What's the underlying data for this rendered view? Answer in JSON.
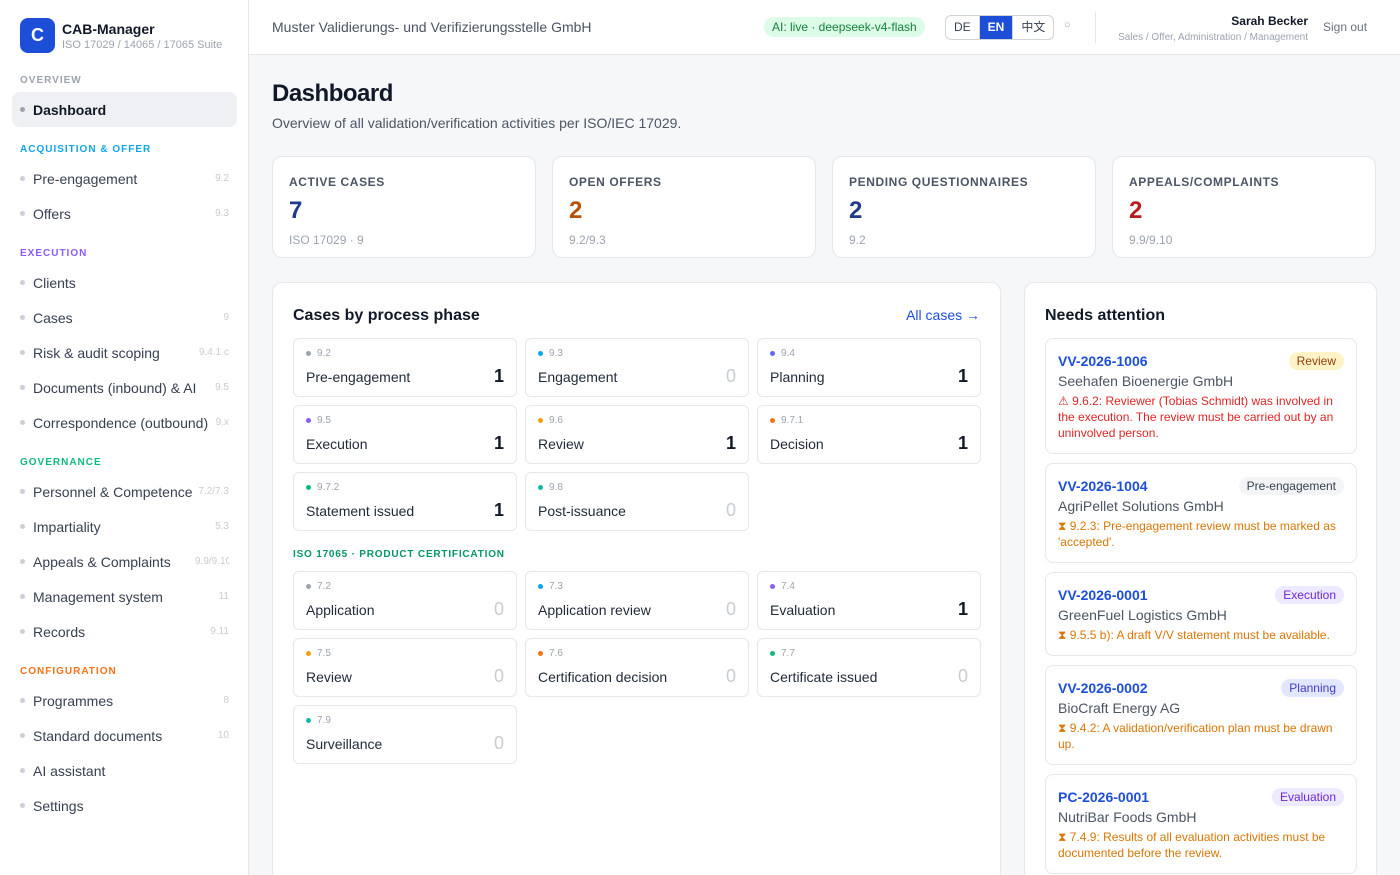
{
  "app": {
    "logo_letter": "C",
    "name": "CAB-Manager",
    "subtitle": "ISO 17029 / 14065 / 17065 Suite"
  },
  "sidebar": {
    "sections": [
      {
        "title": "OVERVIEW",
        "color": "#9ca3af",
        "items": [
          {
            "label": "Dashboard",
            "code": "",
            "active": true
          }
        ]
      },
      {
        "title": "ACQUISITION & OFFER",
        "color": "#0ea5e9",
        "items": [
          {
            "label": "Pre-engagement",
            "code": "9.2"
          },
          {
            "label": "Offers",
            "code": "9.3"
          }
        ]
      },
      {
        "title": "EXECUTION",
        "color": "#8b5cf6",
        "items": [
          {
            "label": "Clients",
            "code": ""
          },
          {
            "label": "Cases",
            "code": "9"
          },
          {
            "label": "Risk & audit scoping",
            "code": "9.4.1 c"
          },
          {
            "label": "Documents (inbound) & AI",
            "code": "9.5"
          },
          {
            "label": "Correspondence (outbound)",
            "code": "9.x"
          }
        ]
      },
      {
        "title": "GOVERNANCE",
        "color": "#10b981",
        "items": [
          {
            "label": "Personnel & Competence",
            "code": "7.2/7.3"
          },
          {
            "label": "Impartiality",
            "code": "5.3"
          },
          {
            "label": "Appeals & Complaints",
            "code": "9.9/9.10"
          },
          {
            "label": "Management system",
            "code": "11"
          },
          {
            "label": "Records",
            "code": "9.11"
          }
        ]
      },
      {
        "title": "CONFIGURATION",
        "color": "#f97316",
        "items": [
          {
            "label": "Programmes",
            "code": "8"
          },
          {
            "label": "Standard documents",
            "code": "10"
          },
          {
            "label": "AI assistant",
            "code": ""
          },
          {
            "label": "Settings",
            "code": ""
          }
        ]
      }
    ]
  },
  "topbar": {
    "org_name": "Muster Validierungs- und Verifizierungsstelle GmbH",
    "ai_status": "AI: live · deepseek-v4-flash",
    "languages": [
      {
        "label": "DE",
        "active": false
      },
      {
        "label": "EN",
        "active": true
      },
      {
        "label": "中文",
        "active": false
      }
    ],
    "theme_toggle_icon": "○",
    "user_name": "Sarah Becker",
    "user_role": "Sales / Offer, Administration / Management",
    "signout_label": "Sign out"
  },
  "page": {
    "title": "Dashboard",
    "subtitle": "Overview of all validation/verification activities per ISO/IEC 17029."
  },
  "stats": [
    {
      "label": "ACTIVE CASES",
      "value": "7",
      "sub": "ISO 17029 · 9",
      "color": "#1e3a8a"
    },
    {
      "label": "OPEN OFFERS",
      "value": "2",
      "sub": "9.2/9.3",
      "color": "#b45309"
    },
    {
      "label": "PENDING QUESTIONNAIRES",
      "value": "2",
      "sub": "9.2",
      "color": "#1e3a8a"
    },
    {
      "label": "APPEALS/COMPLAINTS",
      "value": "2",
      "sub": "9.9/9.10",
      "color": "#b91c1c"
    }
  ],
  "phases_panel": {
    "title": "Cases by process phase",
    "all_cases_label": "All cases →",
    "iso17029": [
      {
        "code": "9.2",
        "name": "Pre-engagement",
        "count": "1",
        "dot": "#9ca3af"
      },
      {
        "code": "9.3",
        "name": "Engagement",
        "count": "0",
        "dot": "#0ea5e9"
      },
      {
        "code": "9.4",
        "name": "Planning",
        "count": "1",
        "dot": "#6366f1"
      },
      {
        "code": "9.5",
        "name": "Execution",
        "count": "1",
        "dot": "#8b5cf6"
      },
      {
        "code": "9.6",
        "name": "Review",
        "count": "1",
        "dot": "#f59e0b"
      },
      {
        "code": "9.7.1",
        "name": "Decision",
        "count": "1",
        "dot": "#f97316"
      },
      {
        "code": "9.7.2",
        "name": "Statement issued",
        "count": "1",
        "dot": "#10b981"
      },
      {
        "code": "9.8",
        "name": "Post-issuance",
        "count": "0",
        "dot": "#14b8a6"
      }
    ],
    "iso17065_title": "ISO 17065 · PRODUCT CERTIFICATION",
    "iso17065": [
      {
        "code": "7.2",
        "name": "Application",
        "count": "0",
        "dot": "#9ca3af"
      },
      {
        "code": "7.3",
        "name": "Application review",
        "count": "0",
        "dot": "#0ea5e9"
      },
      {
        "code": "7.4",
        "name": "Evaluation",
        "count": "1",
        "dot": "#8b5cf6"
      },
      {
        "code": "7.5",
        "name": "Review",
        "count": "0",
        "dot": "#f59e0b"
      },
      {
        "code": "7.6",
        "name": "Certification decision",
        "count": "0",
        "dot": "#f97316"
      },
      {
        "code": "7.7",
        "name": "Certificate issued",
        "count": "0",
        "dot": "#10b981"
      },
      {
        "code": "7.9",
        "name": "Surveillance",
        "count": "0",
        "dot": "#14b8a6"
      }
    ]
  },
  "attention_panel": {
    "title": "Needs attention",
    "items": [
      {
        "id": "VV-2026-1006",
        "badge": "Review",
        "badge_bg": "#fef3c7",
        "badge_color": "#92400e",
        "client": "Seehafen Bioenergie GmbH",
        "message": "⚠ 9.6.2: Reviewer (Tobias Schmidt) was involved in the execution. The review must be carried out by an uninvolved person.",
        "msg_color": "#dc2626"
      },
      {
        "id": "VV-2026-1004",
        "badge": "Pre-engagement",
        "badge_bg": "#f3f4f6",
        "badge_color": "#374151",
        "client": "AgriPellet Solutions GmbH",
        "message": "⧗ 9.2.3: Pre-engagement review must be marked as 'accepted'.",
        "msg_color": "#d97706"
      },
      {
        "id": "VV-2026-0001",
        "badge": "Execution",
        "badge_bg": "#ede9fe",
        "badge_color": "#6d28d9",
        "client": "GreenFuel Logistics GmbH",
        "message": "⧗ 9.5.5 b): A draft V/V statement must be available.",
        "msg_color": "#d97706"
      },
      {
        "id": "VV-2026-0002",
        "badge": "Planning",
        "badge_bg": "#e0e7ff",
        "badge_color": "#4338ca",
        "client": "BioCraft Energy AG",
        "message": "⧗ 9.4.2: A validation/verification plan must be drawn up.",
        "msg_color": "#d97706"
      },
      {
        "id": "PC-2026-0001",
        "badge": "Evaluation",
        "badge_bg": "#ede9fe",
        "badge_color": "#6d28d9",
        "client": "NutriBar Foods GmbH",
        "message": "⧗ 7.4.9: Results of all evaluation activities must be documented before the review.",
        "msg_color": "#d97706"
      }
    ]
  }
}
